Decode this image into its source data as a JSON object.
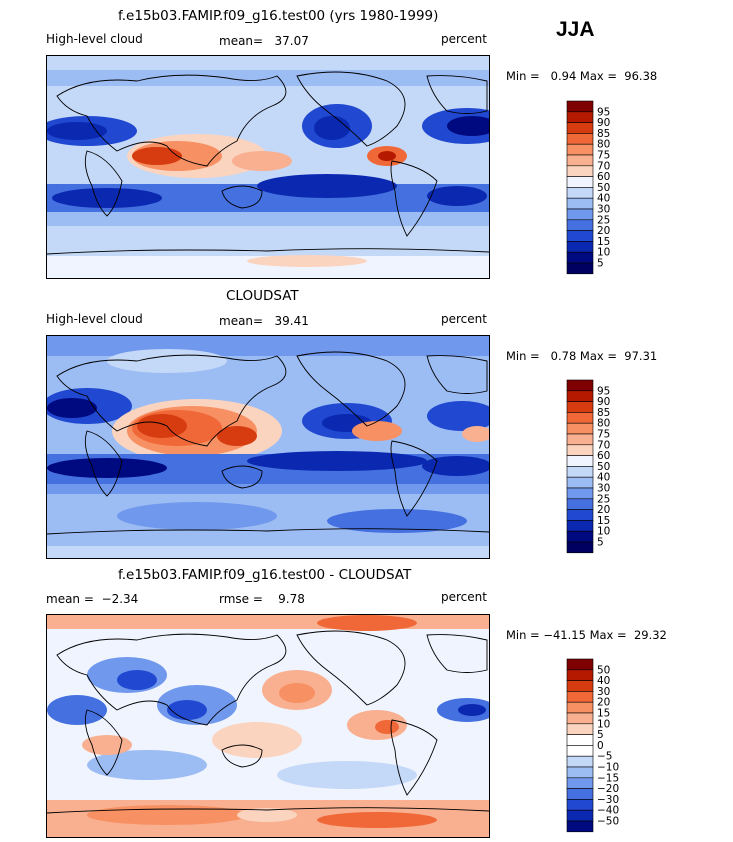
{
  "season": "JJA",
  "panels": [
    {
      "title": "f.e15b03.FAMIP.f09_g16.test00 (yrs 1980-1999)",
      "left_label": "High-level cloud",
      "center_label": "mean=   37.07",
      "right_label": "percent",
      "minmax": "Min =   0.94 Max =  96.38",
      "colorbar_ticks": [
        "95",
        "90",
        "85",
        "80",
        "75",
        "70",
        "60",
        "50",
        "40",
        "30",
        "25",
        "20",
        "15",
        "10",
        "5"
      ],
      "kind": "abs"
    },
    {
      "title": "CLOUDSAT",
      "left_label": "High-level cloud",
      "center_label": "mean=   39.41",
      "right_label": "percent",
      "minmax": "Min =   0.78 Max =  97.31",
      "colorbar_ticks": [
        "95",
        "90",
        "85",
        "80",
        "75",
        "70",
        "60",
        "50",
        "40",
        "30",
        "25",
        "20",
        "15",
        "10",
        "5"
      ],
      "kind": "abs"
    },
    {
      "title": "f.e15b03.FAMIP.f09_g16.test00 - CLOUDSAT",
      "left_label": "mean =  −2.34",
      "center_label": "rmse =    9.78",
      "right_label": "percent",
      "minmax": "Min = −41.15 Max =  29.32",
      "colorbar_ticks": [
        "50",
        "40",
        "30",
        "20",
        "15",
        "10",
        "5",
        "0",
        "−5",
        "−10",
        "−15",
        "−20",
        "−30",
        "−40",
        "−50"
      ],
      "kind": "diff"
    }
  ],
  "colors": {
    "abs_scale": [
      "#7f0000",
      "#b51a00",
      "#d63c10",
      "#f06838",
      "#f79063",
      "#f8b090",
      "#fbd4c0",
      "#f0f4ff",
      "#c4d8f8",
      "#9cbcf4",
      "#7098ec",
      "#4470e0",
      "#2048d0",
      "#0a28b0",
      "#000a80",
      "#000060"
    ],
    "diff_scale": [
      "#7f0000",
      "#b51a00",
      "#d63c10",
      "#f06838",
      "#f79063",
      "#f8b090",
      "#fbd4c0",
      "#ffffff",
      "#ffffff",
      "#c4d8f8",
      "#9cbcf4",
      "#7098ec",
      "#4470e0",
      "#2048d0",
      "#0a28b0",
      "#000a80"
    ]
  }
}
